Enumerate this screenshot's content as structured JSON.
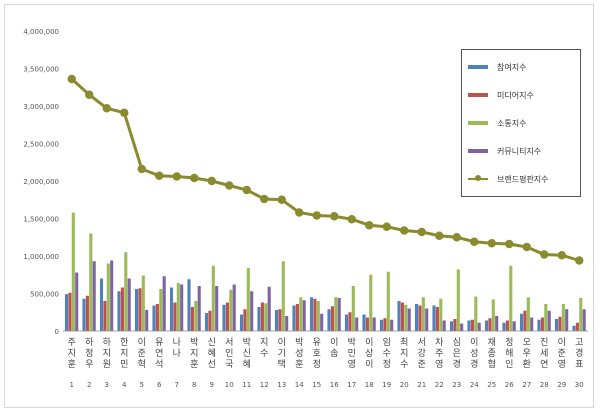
{
  "chart_data": {
    "type": "bar",
    "title": "",
    "xlabel": "",
    "ylabel": "",
    "ylim": [
      0,
      4000000
    ],
    "yticks": [
      "0",
      "500,000",
      "1,000,000",
      "1,500,000",
      "2,000,000",
      "2,500,000",
      "3,000,000",
      "3,500,000",
      "4,000,000"
    ],
    "grid": false,
    "legend_position": "top-right",
    "categories": [
      "주지훈",
      "하정우",
      "하지원",
      "한지민",
      "이준혁",
      "유연석",
      "나나",
      "박지훈",
      "신혜선",
      "서인국",
      "박신혜",
      "지수",
      "이기택",
      "박성훈",
      "유호정",
      "이솜",
      "박민영",
      "이상이",
      "임수정",
      "최지수",
      "서강준",
      "차주영",
      "심은경",
      "이성경",
      "채종협",
      "정해인",
      "오우환",
      "진세연",
      "이준영",
      "고경표"
    ],
    "ranks": [
      "1",
      "2",
      "3",
      "4",
      "5",
      "6",
      "7",
      "8",
      "9",
      "10",
      "11",
      "12",
      "13",
      "14",
      "15",
      "16",
      "17",
      "18",
      "19",
      "20",
      "21",
      "22",
      "23",
      "24",
      "25",
      "26",
      "27",
      "28",
      "29",
      "30"
    ],
    "series": [
      {
        "name": "참여지수",
        "kind": "bar",
        "color": "#4f81bd",
        "values": [
          490000,
          430000,
          700000,
          530000,
          560000,
          340000,
          580000,
          690000,
          240000,
          350000,
          220000,
          320000,
          280000,
          340000,
          450000,
          290000,
          220000,
          220000,
          150000,
          400000,
          360000,
          340000,
          130000,
          140000,
          140000,
          110000,
          230000,
          150000,
          160000,
          70000
        ]
      },
      {
        "name": "미디어지수",
        "kind": "bar",
        "color": "#c0504d",
        "values": [
          510000,
          470000,
          400000,
          580000,
          570000,
          360000,
          380000,
          320000,
          270000,
          380000,
          290000,
          380000,
          290000,
          360000,
          430000,
          330000,
          250000,
          180000,
          170000,
          380000,
          340000,
          320000,
          160000,
          150000,
          170000,
          140000,
          270000,
          180000,
          190000,
          110000
        ]
      },
      {
        "name": "소통지수",
        "kind": "bar",
        "color": "#9bbb59",
        "values": [
          1580000,
          1300000,
          900000,
          1050000,
          740000,
          560000,
          640000,
          400000,
          870000,
          550000,
          840000,
          370000,
          930000,
          450000,
          400000,
          450000,
          600000,
          750000,
          790000,
          350000,
          450000,
          430000,
          820000,
          460000,
          420000,
          870000,
          450000,
          360000,
          360000,
          440000
        ]
      },
      {
        "name": "커뮤니티지수",
        "kind": "bar",
        "color": "#8064a2",
        "values": [
          780000,
          930000,
          940000,
          700000,
          280000,
          730000,
          620000,
          600000,
          600000,
          620000,
          530000,
          590000,
          200000,
          410000,
          230000,
          440000,
          180000,
          180000,
          150000,
          300000,
          300000,
          140000,
          100000,
          110000,
          200000,
          130000,
          180000,
          270000,
          290000,
          290000
        ]
      },
      {
        "name": "브랜드평판지수",
        "kind": "line",
        "color": "#8a8a2e",
        "values": [
          3360000,
          3150000,
          2970000,
          2910000,
          2160000,
          2070000,
          2060000,
          2040000,
          2000000,
          1940000,
          1880000,
          1760000,
          1750000,
          1580000,
          1540000,
          1530000,
          1490000,
          1410000,
          1390000,
          1340000,
          1320000,
          1270000,
          1250000,
          1190000,
          1170000,
          1160000,
          1120000,
          1020000,
          1010000,
          940000
        ]
      }
    ]
  }
}
